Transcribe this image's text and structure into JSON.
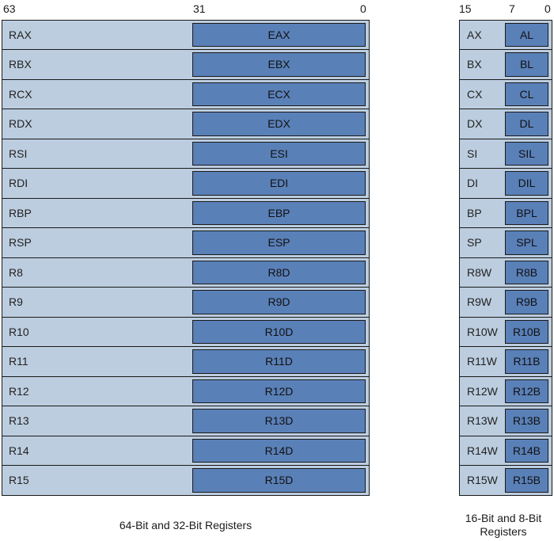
{
  "bits": {
    "b63": "63",
    "b31": "31",
    "b0a": "0",
    "b15": "15",
    "b7": "7",
    "b0b": "0"
  },
  "regs64": [
    {
      "name": "RAX",
      "low": "EAX"
    },
    {
      "name": "RBX",
      "low": "EBX"
    },
    {
      "name": "RCX",
      "low": "ECX"
    },
    {
      "name": "RDX",
      "low": "EDX"
    },
    {
      "name": "RSI",
      "low": "ESI"
    },
    {
      "name": "RDI",
      "low": "EDI"
    },
    {
      "name": "RBP",
      "low": "EBP"
    },
    {
      "name": "RSP",
      "low": "ESP"
    },
    {
      "name": "R8",
      "low": "R8D"
    },
    {
      "name": "R9",
      "low": "R9D"
    },
    {
      "name": "R10",
      "low": "R10D"
    },
    {
      "name": "R11",
      "low": "R11D"
    },
    {
      "name": "R12",
      "low": "R12D"
    },
    {
      "name": "R13",
      "low": "R13D"
    },
    {
      "name": "R14",
      "low": "R14D"
    },
    {
      "name": "R15",
      "low": "R15D"
    }
  ],
  "regs16": [
    {
      "name": "AX",
      "low": "AL"
    },
    {
      "name": "BX",
      "low": "BL"
    },
    {
      "name": "CX",
      "low": "CL"
    },
    {
      "name": "DX",
      "low": "DL"
    },
    {
      "name": "SI",
      "low": "SIL"
    },
    {
      "name": "DI",
      "low": "DIL"
    },
    {
      "name": "BP",
      "low": "BPL"
    },
    {
      "name": "SP",
      "low": "SPL"
    },
    {
      "name": "R8W",
      "low": "R8B"
    },
    {
      "name": "R9W",
      "low": "R9B"
    },
    {
      "name": "R10W",
      "low": "R10B"
    },
    {
      "name": "R11W",
      "low": "R11B"
    },
    {
      "name": "R12W",
      "low": "R12B"
    },
    {
      "name": "R13W",
      "low": "R13B"
    },
    {
      "name": "R14W",
      "low": "R14B"
    },
    {
      "name": "R15W",
      "low": "R15B"
    }
  ],
  "captions": {
    "left": "64-Bit and 32-Bit Registers",
    "right_line1": "16-Bit and 8-Bit",
    "right_line2": "Registers"
  },
  "colors": {
    "outer": "#bccddf",
    "inner": "#5a80b8",
    "border": "#1a1a1a"
  }
}
